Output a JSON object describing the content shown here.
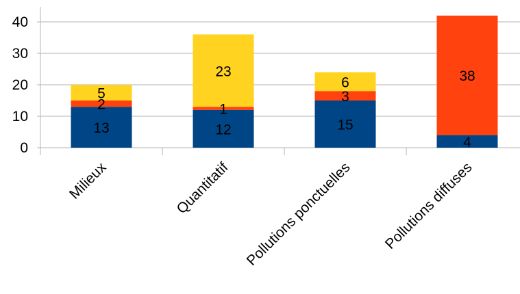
{
  "chart_data": {
    "type": "bar",
    "stacked": true,
    "categories": [
      "Milieux",
      "Quantitatif",
      "Pollutions ponctuelles",
      "Pollutions diffuses"
    ],
    "series": [
      {
        "color": "#004586",
        "values": [
          13,
          12,
          15,
          4
        ]
      },
      {
        "color": "#ff420e",
        "values": [
          2,
          1,
          3,
          38
        ]
      },
      {
        "color": "#ffd320",
        "values": [
          5,
          23,
          6,
          0
        ]
      }
    ],
    "ylim": [
      0,
      40
    ],
    "yticks": [
      0,
      10,
      20,
      30,
      40
    ],
    "grid": true,
    "data_labels": true,
    "legend": "none",
    "xlabel": "",
    "ylabel": "",
    "title": ""
  }
}
